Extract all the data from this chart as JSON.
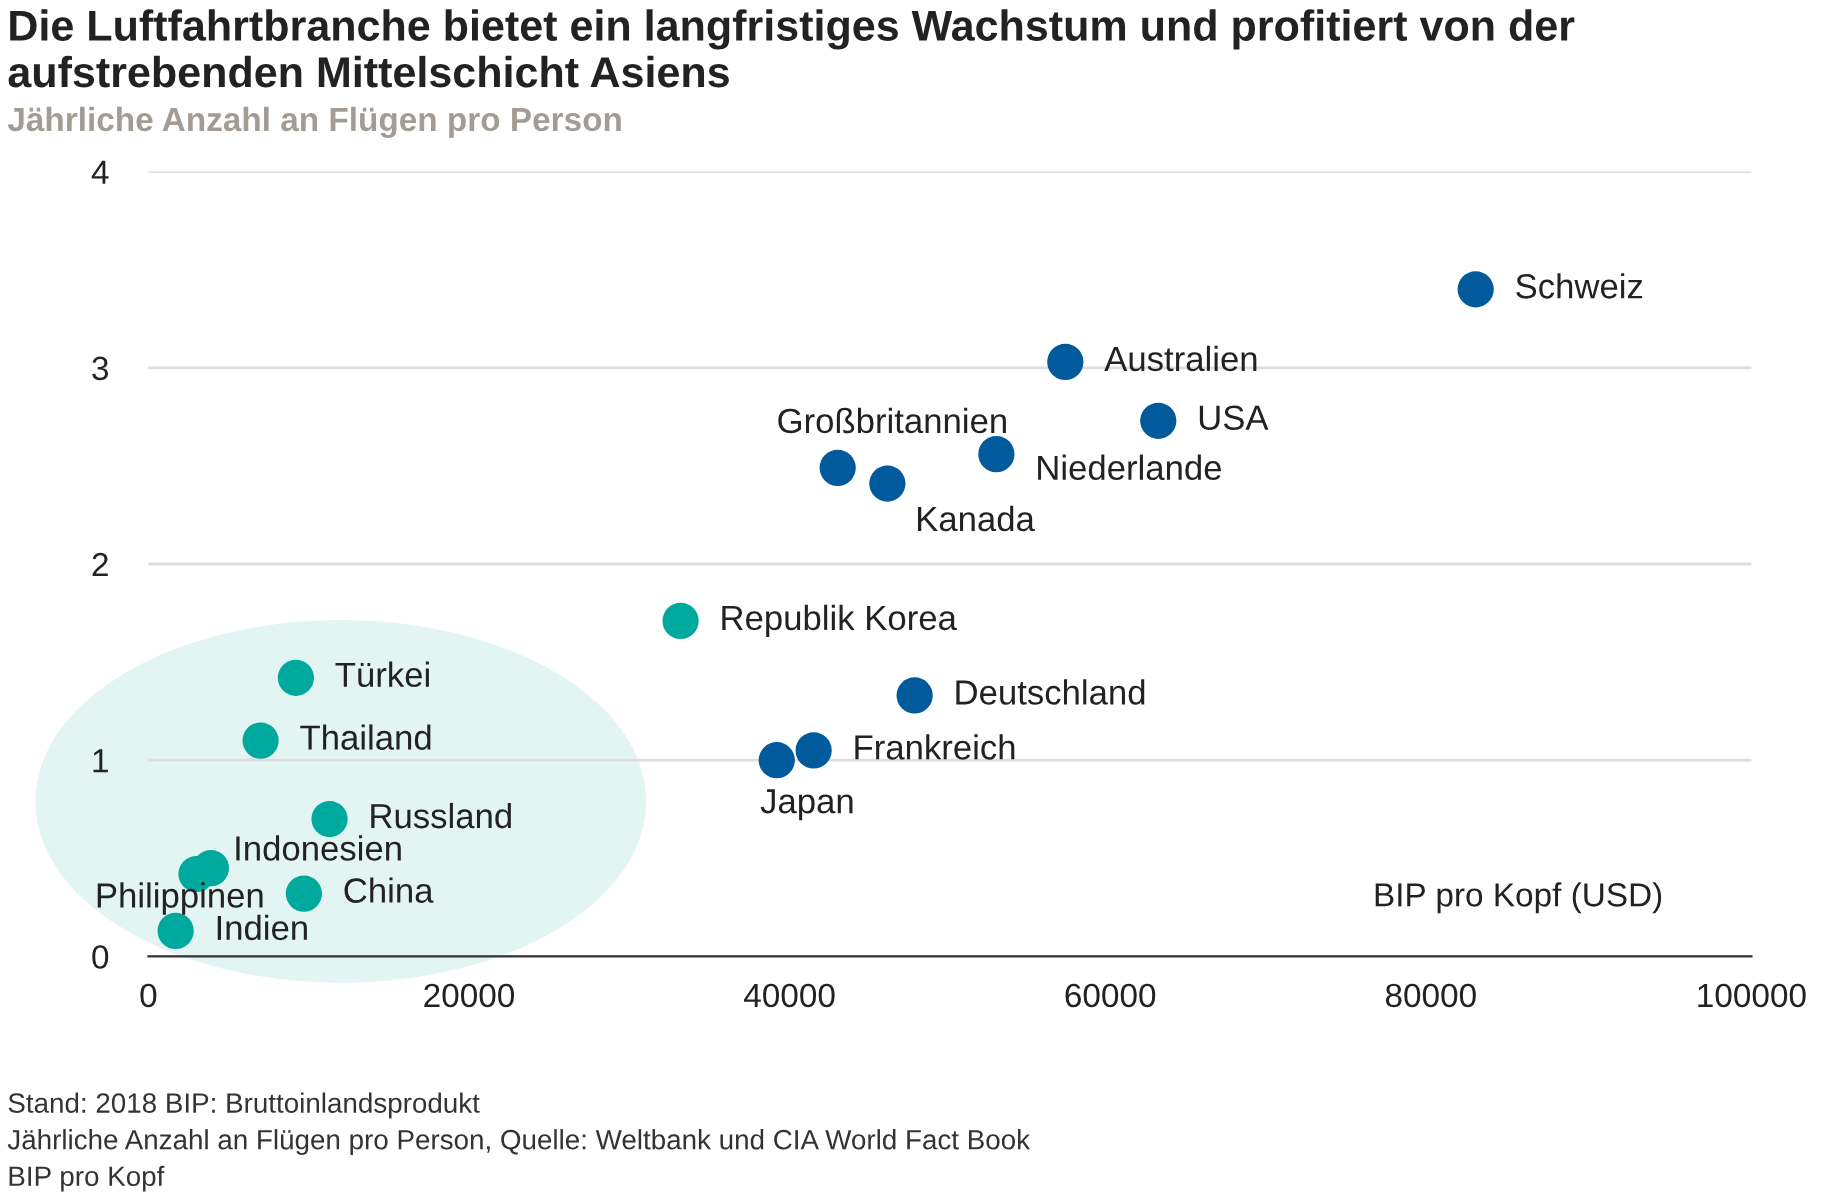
{
  "chart_data": {
    "type": "scatter",
    "title": "Die Luftfahrtbranche bietet ein langfristiges Wachstum und profitiert von der aufstrebenden Mittelschicht Asiens",
    "ylabel": "Jährliche Anzahl an Flügen pro Person",
    "xlabel": "BIP pro Kopf (USD)",
    "xlim": [
      0,
      100000
    ],
    "xticks": [
      0,
      20000,
      40000,
      60000,
      80000,
      100000
    ],
    "ylim": [
      0,
      4
    ],
    "yticks": [
      0,
      1,
      2,
      3,
      4
    ],
    "grid": "y",
    "marker": "circle",
    "series": [
      {
        "color": "#005a9c",
        "x": [
          82800,
          57200,
          63000,
          52900,
          43000,
          46100,
          47800,
          41500,
          39200
        ],
        "values": [
          3.4,
          3.03,
          2.73,
          2.56,
          2.49,
          2.41,
          1.33,
          1.05,
          1.0
        ]
      },
      {
        "color": "#00a99d",
        "x": [
          33200,
          9200,
          7000,
          11300,
          3900,
          3000,
          9700,
          1700
        ],
        "values": [
          1.71,
          1.42,
          1.1,
          0.7,
          0.45,
          0.42,
          0.32,
          0.13
        ]
      }
    ],
    "annotations": [
      {
        "text": "Schweiz",
        "x": 82800,
        "y": 3.4
      },
      {
        "text": "Australien",
        "x": 57200,
        "y": 3.03
      },
      {
        "text": "USA",
        "x": 63000,
        "y": 2.73
      },
      {
        "text": "Niederlande",
        "x": 52900,
        "y": 2.56
      },
      {
        "text": "Großbritannien",
        "x": 43000,
        "y": 2.49
      },
      {
        "text": "Kanada",
        "x": 46100,
        "y": 2.41
      },
      {
        "text": "Deutschland",
        "x": 47800,
        "y": 1.33
      },
      {
        "text": "Frankreich",
        "x": 41500,
        "y": 1.05
      },
      {
        "text": "Japan",
        "x": 39200,
        "y": 1.0
      },
      {
        "text": "Republik Korea",
        "x": 33200,
        "y": 1.71
      },
      {
        "text": "Türkei",
        "x": 9200,
        "y": 1.42
      },
      {
        "text": "Thailand",
        "x": 7000,
        "y": 1.1
      },
      {
        "text": "Russland",
        "x": 11300,
        "y": 0.7
      },
      {
        "text": "Indonesien",
        "x": 3900,
        "y": 0.45
      },
      {
        "text": "Philippinen",
        "x": 3000,
        "y": 0.42
      },
      {
        "text": "China",
        "x": 9700,
        "y": 0.32
      },
      {
        "text": "Indien",
        "x": 1700,
        "y": 0.13
      },
      "Stand: 2018 BIP: Bruttoinlandsprodukt",
      "Jährliche Anzahl an Flügen pro Person, Quelle: Weltbank und CIA World Fact Book",
      "BIP pro Kopf"
    ]
  }
}
